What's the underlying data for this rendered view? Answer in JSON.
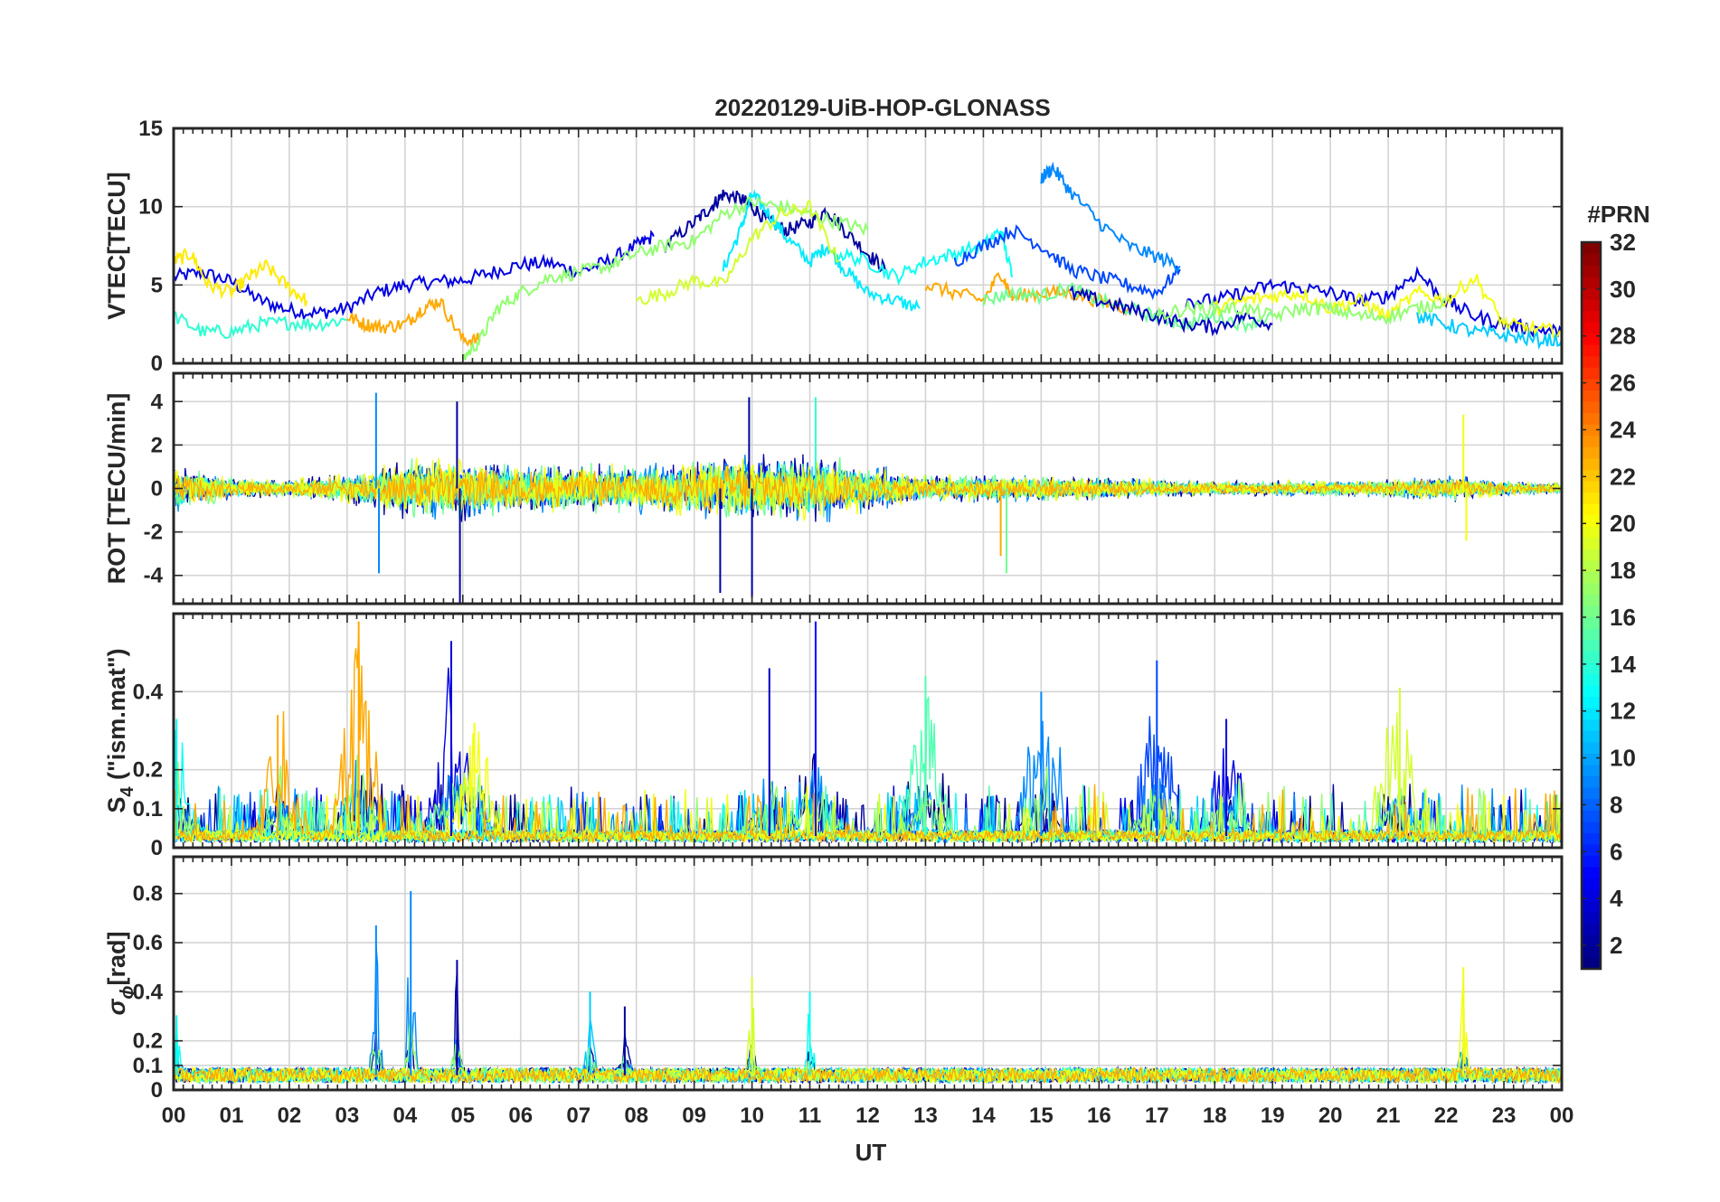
{
  "title": "20220129-UiB-HOP-GLONASS",
  "x_axis": {
    "label": "UT",
    "range": [
      0,
      24
    ],
    "tick_labels": [
      "00",
      "01",
      "02",
      "03",
      "04",
      "05",
      "06",
      "07",
      "08",
      "09",
      "10",
      "11",
      "12",
      "13",
      "14",
      "15",
      "16",
      "17",
      "18",
      "19",
      "20",
      "21",
      "22",
      "23",
      "00"
    ]
  },
  "colorbar": {
    "label": "#PRN",
    "range": [
      1,
      32
    ],
    "colormap": "jet",
    "tick_values": [
      2,
      4,
      6,
      8,
      10,
      12,
      14,
      16,
      18,
      20,
      22,
      24,
      26,
      28,
      30,
      32
    ],
    "tick_labels": [
      "2",
      "4",
      "6",
      "8",
      "10",
      "12",
      "14",
      "16",
      "18",
      "20",
      "22",
      "24",
      "26",
      "28",
      "30",
      "32"
    ]
  },
  "panels": [
    {
      "id": "vtec",
      "ylabel": "VTEC[TECU]",
      "ylim": [
        0,
        15
      ],
      "yticks": [
        0,
        5,
        10,
        15
      ],
      "ytick_labels": [
        "0",
        "5",
        "10",
        "15"
      ]
    },
    {
      "id": "rot",
      "ylabel": "ROT [TECU/min]",
      "ylim": [
        -5.3,
        5.3
      ],
      "yticks": [
        -4,
        -2,
        0,
        2,
        4
      ],
      "ytick_labels": [
        "-4",
        "-2",
        "0",
        "2",
        "4"
      ]
    },
    {
      "id": "s4",
      "ylabel_main": "S",
      "ylabel_sub": "4",
      "ylabel_rest": " (\"ism.mat\")",
      "ylim": [
        0,
        0.6
      ],
      "yticks": [
        0,
        0.1,
        0.2,
        0.4
      ],
      "ytick_labels": [
        "0",
        "0.1",
        "0.2",
        "0.4"
      ]
    },
    {
      "id": "sigma",
      "ylabel_main": "σ",
      "ylabel_sub": "ϕ",
      "ylabel_rest": "[rad]",
      "ylim": [
        0,
        0.95
      ],
      "yticks": [
        0,
        0.1,
        0.2,
        0.4,
        0.6,
        0.8
      ],
      "ytick_labels": [
        "0",
        "0.1",
        "0.2",
        "0.4",
        "0.6",
        "0.8"
      ]
    }
  ],
  "chart_data": {
    "type": "line",
    "title": "20220129-UiB-HOP-GLONASS",
    "xlabel": "UT",
    "x_unit": "hours UT",
    "colorbar_label": "#PRN",
    "panels": [
      {
        "id": "vtec",
        "ylabel": "VTEC[TECU]",
        "ylim": [
          0,
          15
        ],
        "series": [
          {
            "prn": 4,
            "x": [
              0,
              0.5,
              1,
              1.5,
              2,
              2.5,
              3,
              3.5,
              4,
              4.5,
              5,
              5.5,
              6,
              6.5,
              7,
              7.5,
              8,
              8.3
            ],
            "y": [
              5.5,
              5.8,
              5.2,
              4,
              3.4,
              3.2,
              3.5,
              4.5,
              5,
              5.2,
              5.3,
              5.8,
              6.3,
              6.4,
              5.8,
              6.5,
              7.5,
              8.1
            ]
          },
          {
            "prn": 2,
            "x": [
              8.5,
              9,
              9.3,
              9.5,
              9.8,
              10,
              10.3,
              10.6,
              11,
              11.3,
              11.6,
              12,
              12.3
            ],
            "y": [
              7.5,
              9,
              10,
              10.8,
              10.5,
              10,
              9,
              8.5,
              9,
              9.8,
              8.5,
              7,
              6
            ]
          },
          {
            "prn": 12,
            "x": [
              9.5,
              9.8,
              10,
              10.3,
              10.6,
              11,
              11.3,
              11.6,
              12,
              12.5,
              12.9
            ],
            "y": [
              6,
              8.5,
              10.8,
              9.5,
              8,
              6.5,
              7.5,
              6,
              4.5,
              4,
              3.5
            ]
          },
          {
            "prn": 21,
            "x": [
              0,
              0.3,
              0.6,
              1,
              1.3,
              1.6,
              2,
              2.3
            ],
            "y": [
              6.5,
              7,
              5,
              4.5,
              5.5,
              6.2,
              4.8,
              4
            ]
          },
          {
            "prn": 14,
            "x": [
              0,
              0.5,
              1,
              1.5,
              2,
              2.5,
              3
            ],
            "y": [
              3,
              2,
              2,
              2.5,
              2.6,
              2.5,
              2.8
            ]
          },
          {
            "prn": 23,
            "x": [
              3,
              3.3,
              3.6,
              4,
              4.3,
              4.6,
              5,
              5.3
            ],
            "y": [
              3,
              2.5,
              2.3,
              2.5,
              3.5,
              4,
              1.5,
              1.5
            ]
          },
          {
            "prn": 17,
            "x": [
              5,
              5.3,
              5.6,
              6,
              6.5,
              7,
              7.5,
              8,
              8.5,
              9,
              9.5,
              10,
              10.5,
              11,
              11.5,
              12
            ],
            "y": [
              0.3,
              1.5,
              3.5,
              4.5,
              5.5,
              5.8,
              6.2,
              7,
              7.5,
              7.8,
              9.5,
              10.3,
              10,
              9.5,
              9,
              8.5
            ]
          },
          {
            "prn": 19,
            "x": [
              8,
              8.5,
              9,
              9.5,
              10,
              10.5,
              11,
              11.5
            ],
            "y": [
              4,
              4.5,
              5.3,
              5,
              8,
              9.5,
              10,
              6.5
            ]
          },
          {
            "prn": 13,
            "x": [
              11.5,
              12,
              12.5,
              13,
              13.5,
              14,
              14.3,
              14.5
            ],
            "y": [
              7,
              6.5,
              5.5,
              6.5,
              7,
              7.5,
              8.5,
              5.5
            ]
          },
          {
            "prn": 7,
            "x": [
              13.5,
              14,
              14.5,
              15,
              15.5,
              16,
              16.5,
              17,
              17.4
            ],
            "y": [
              6.5,
              7.5,
              8.5,
              7.5,
              6,
              5.5,
              5,
              4.5,
              6
            ]
          },
          {
            "prn": 9,
            "x": [
              15,
              15.2,
              15.5,
              16,
              16.5,
              17,
              17.4
            ],
            "y": [
              11.8,
              12.5,
              11,
              9,
              7.5,
              6.8,
              6.2
            ]
          },
          {
            "prn": 23,
            "x": [
              13,
              13.5,
              14,
              14.3,
              14.5,
              15,
              15.5,
              16,
              16.5
            ],
            "y": [
              5,
              4.5,
              4,
              5.8,
              4.2,
              4.5,
              4.5,
              4,
              3.5
            ]
          },
          {
            "prn": 16,
            "x": [
              14,
              14.5,
              15,
              15.5,
              16,
              16.5,
              17,
              17.5,
              18,
              18.5,
              19
            ],
            "y": [
              4,
              4.5,
              4.3,
              4.8,
              4,
              3.5,
              3,
              2.5,
              3,
              2.5,
              3
            ]
          },
          {
            "prn": 3,
            "x": [
              15.5,
              16,
              16.5,
              17,
              17.5,
              18,
              18.5,
              19
            ],
            "y": [
              4.5,
              4,
              3.5,
              3,
              2.5,
              2.3,
              3,
              2.5
            ]
          },
          {
            "prn": 4,
            "x": [
              17.5,
              18,
              18.5,
              19,
              19.5,
              20,
              20.5,
              21,
              21.5,
              22,
              22.5,
              23,
              23.5,
              24
            ],
            "y": [
              4,
              4,
              4.5,
              5,
              4.8,
              4.5,
              4,
              4.3,
              5.8,
              4,
              3,
              2.5,
              2.2,
              2
            ]
          },
          {
            "prn": 20,
            "x": [
              18,
              18.5,
              19,
              19.5,
              20,
              20.5,
              21,
              21.5,
              22,
              22.5,
              23,
              23.5,
              24
            ],
            "y": [
              3.5,
              4,
              4.3,
              4.5,
              3.5,
              4,
              3,
              4.5,
              4,
              5.5,
              2.5,
              2.2,
              2
            ]
          },
          {
            "prn": 17,
            "x": [
              17,
              17.5,
              18,
              18.5,
              19,
              19.5,
              20,
              20.5,
              21,
              21.5,
              22
            ],
            "y": [
              3,
              3.5,
              3.5,
              3.5,
              3,
              3.5,
              3.5,
              3,
              3,
              3.5,
              4
            ]
          },
          {
            "prn": 11,
            "x": [
              21.5,
              22,
              22.5,
              23,
              23.5,
              24
            ],
            "y": [
              3,
              2.5,
              2,
              1.8,
              1.5,
              1.5
            ]
          }
        ]
      },
      {
        "id": "rot",
        "ylabel": "ROT [TECU/min]",
        "ylim": [
          -5.3,
          5.3
        ],
        "spikes": [
          {
            "prn": 9,
            "x": 3.5,
            "y": 4.4
          },
          {
            "prn": 9,
            "x": 3.55,
            "y": -3.9
          },
          {
            "prn": 2,
            "x": 4.9,
            "y": 4.0
          },
          {
            "prn": 2,
            "x": 4.95,
            "y": -5.3
          },
          {
            "prn": 2,
            "x": 9.45,
            "y": -4.8
          },
          {
            "prn": 2,
            "x": 9.95,
            "y": 4.2
          },
          {
            "prn": 2,
            "x": 10.0,
            "y": -5.0
          },
          {
            "prn": 14,
            "x": 11.1,
            "y": 4.2
          },
          {
            "prn": 23,
            "x": 14.3,
            "y": -3.1
          },
          {
            "prn": 16,
            "x": 14.4,
            "y": -3.9
          },
          {
            "prn": 20,
            "x": 22.3,
            "y": 3.4
          },
          {
            "prn": 20,
            "x": 22.35,
            "y": -2.4
          }
        ],
        "envelope": {
          "x": [
            0,
            1,
            2,
            3,
            4,
            5,
            6,
            7,
            8,
            9,
            10,
            11,
            12,
            13,
            14,
            15,
            16,
            17,
            18,
            19,
            20,
            21,
            22,
            23,
            24
          ],
          "amplitude": [
            1.2,
            0.6,
            0.5,
            0.8,
            1.5,
            1.6,
            1.3,
            1.3,
            1.2,
            1.6,
            1.8,
            1.8,
            1.2,
            0.7,
            0.7,
            0.7,
            0.6,
            0.5,
            0.4,
            0.4,
            0.4,
            0.5,
            0.7,
            0.4,
            0.3
          ]
        }
      },
      {
        "id": "s4",
        "ylabel": "S4 (\"ism.mat\")",
        "ylim": [
          0,
          0.6
        ],
        "peaks": [
          {
            "prn": 13,
            "x": 0.05,
            "y": 0.33
          },
          {
            "prn": 23,
            "x": 1.8,
            "y": 0.34
          },
          {
            "prn": 23,
            "x": 3.2,
            "y": 0.58
          },
          {
            "prn": 4,
            "x": 4.8,
            "y": 0.53
          },
          {
            "prn": 20,
            "x": 5.2,
            "y": 0.32
          },
          {
            "prn": 3,
            "x": 10.3,
            "y": 0.46
          },
          {
            "prn": 5,
            "x": 11.1,
            "y": 0.58
          },
          {
            "prn": 15,
            "x": 13.0,
            "y": 0.44
          },
          {
            "prn": 9,
            "x": 15.0,
            "y": 0.4
          },
          {
            "prn": 7,
            "x": 17.0,
            "y": 0.48
          },
          {
            "prn": 4,
            "x": 18.2,
            "y": 0.33
          },
          {
            "prn": 19,
            "x": 21.2,
            "y": 0.41
          }
        ],
        "baseline": 0.03
      },
      {
        "id": "sigma",
        "ylabel": "σϕ[rad]",
        "ylim": [
          0,
          0.95
        ],
        "peaks": [
          {
            "prn": 9,
            "x": 3.5,
            "y": 0.67
          },
          {
            "prn": 9,
            "x": 4.1,
            "y": 0.81
          },
          {
            "prn": 2,
            "x": 4.9,
            "y": 0.53
          },
          {
            "prn": 19,
            "x": 10.0,
            "y": 0.46
          },
          {
            "prn": 13,
            "x": 11.0,
            "y": 0.4
          },
          {
            "prn": 11,
            "x": 7.2,
            "y": 0.4
          },
          {
            "prn": 2,
            "x": 7.8,
            "y": 0.34
          },
          {
            "prn": 20,
            "x": 22.3,
            "y": 0.5
          },
          {
            "prn": 13,
            "x": 0.05,
            "y": 0.3
          }
        ],
        "baseline": 0.06
      }
    ]
  }
}
